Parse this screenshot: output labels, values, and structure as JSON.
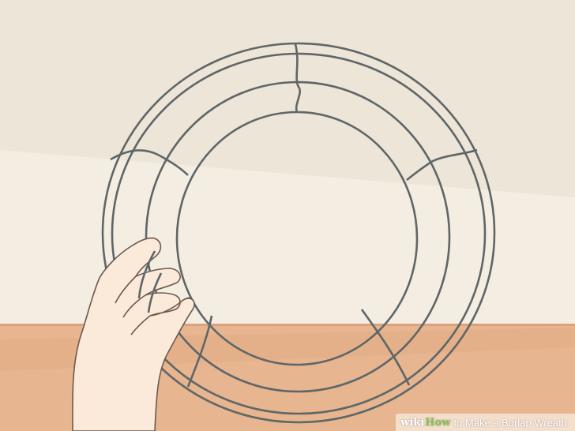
{
  "scene": {
    "subject": "hand holding wire wreath frame",
    "colors": {
      "wall": "#f3ede2",
      "wall_shadow": "#ece4d6",
      "table": "#e7b58f",
      "table_edge": "#dca07c",
      "wire": "#5f6668",
      "skin": "#fbe9da",
      "skin_outline": "#6e5a4f"
    }
  },
  "watermark": {
    "brand_prefix": "wiki",
    "brand_suffix": "How",
    "title": "to Make a Burlap Wreath"
  }
}
